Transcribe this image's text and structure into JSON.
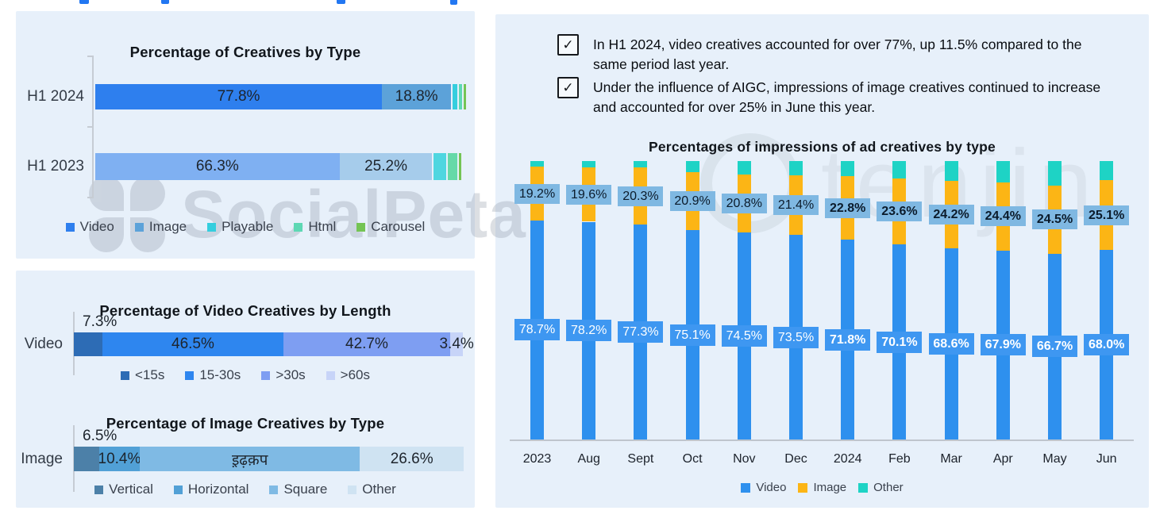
{
  "cropped_heading": {
    "color": "#2277f2"
  },
  "bullets": [
    {
      "icon": "checkbox-checked-icon",
      "check": "✓",
      "text": "In H1 2024, video creatives accounted for over 77%, up 11.5% compared to the same period last year."
    },
    {
      "icon": "checkbox-checked-icon",
      "check": "✓",
      "text": "Under the influence of AIGC, impressions of image creatives continued to increase and accounted for over 25% in June this year."
    }
  ],
  "watermarks": {
    "socialpeta": "SocialPeta",
    "tenjin": "tenjin"
  },
  "chart_data": [
    {
      "type": "bar",
      "subtype": "horizontal-stacked",
      "title": "Percentage of Creatives by Type",
      "xlim": [
        0,
        100
      ],
      "legend_position": "bottom",
      "legend": [
        {
          "label": "Video",
          "color": "#2e7fee"
        },
        {
          "label": "Image",
          "color": "#5ca2d9"
        },
        {
          "label": "Playable",
          "color": "#35cede"
        },
        {
          "label": "Html",
          "color": "#5ed8b4"
        },
        {
          "label": "Carousel",
          "color": "#74c454"
        }
      ],
      "rows": [
        {
          "label": "H1 2024",
          "segments": [
            {
              "name": "Video",
              "value": 77.8,
              "text": "77.8%",
              "color": "#2e7fee"
            },
            {
              "name": "Image",
              "value": 18.8,
              "text": "18.8%",
              "color": "#5ca2d9"
            },
            {
              "name": "Playable",
              "value": 1.2,
              "color": "#35cede",
              "gap": true
            },
            {
              "name": "Html",
              "value": 1.0,
              "color": "#5ed8b4",
              "gap": true
            },
            {
              "name": "Carousel",
              "value": 0.5,
              "color": "#74c454",
              "gap": true
            }
          ]
        },
        {
          "label": "H1 2023",
          "segments": [
            {
              "name": "Video",
              "value": 66.3,
              "text": "66.3%",
              "color": "#7fb0f2"
            },
            {
              "name": "Image",
              "value": 25.2,
              "text": "25.2%",
              "color": "#a6cceb"
            },
            {
              "name": "Playable",
              "value": 3.4,
              "color": "#4fd6e0",
              "gap": true
            },
            {
              "name": "Html",
              "value": 2.6,
              "color": "#66d9a8",
              "gap": true
            },
            {
              "name": "Carousel",
              "value": 0.5,
              "color": "#74c454",
              "gap": true
            }
          ]
        }
      ]
    },
    {
      "type": "bar",
      "subtype": "horizontal-stacked",
      "title": "Percentage of Video Creatives by Length",
      "xlim": [
        0,
        100
      ],
      "legend_position": "bottom",
      "legend": [
        {
          "label": "<15s",
          "color": "#2d6cb5"
        },
        {
          "label": "15-30s",
          "color": "#2e86ef"
        },
        {
          "label": ">30s",
          "color": "#7e9ef2"
        },
        {
          "label": ">60s",
          "color": "#c7d4f8"
        }
      ],
      "rows": [
        {
          "label": "Video",
          "outside_label": "7.3%",
          "segments": [
            {
              "name": "<15s",
              "value": 7.3,
              "color": "#2d6cb5"
            },
            {
              "name": "15-30s",
              "value": 46.5,
              "text": "46.5%",
              "color": "#2e86ef"
            },
            {
              "name": ">30s",
              "value": 42.7,
              "text": "42.7%",
              "color": "#7e9ef2"
            },
            {
              "name": ">60s",
              "value": 3.4,
              "text": "3.4%",
              "color": "#c7d4f8"
            }
          ]
        }
      ]
    },
    {
      "type": "bar",
      "subtype": "horizontal-stacked",
      "title": "Percentage of Image Creatives by Type",
      "xlim": [
        0,
        100
      ],
      "legend_position": "bottom",
      "legend": [
        {
          "label": "Vertical",
          "color": "#4c80a8"
        },
        {
          "label": "Horizontal",
          "color": "#51a0d6"
        },
        {
          "label": "Square",
          "color": "#7fbae4"
        },
        {
          "label": "Other",
          "color": "#cfe3f2"
        }
      ],
      "rows": [
        {
          "label": "Image",
          "outside_label": "6.5%",
          "segments": [
            {
              "name": "Vertical",
              "value": 6.5,
              "color": "#4c80a8"
            },
            {
              "name": "Horizontal",
              "value": 10.4,
              "text": "10.4%",
              "color": "#51a0d6"
            },
            {
              "name": "Square",
              "value": 56.5,
              "text": "इ़ढ़क़प",
              "color": "#7fbae4"
            },
            {
              "name": "Other",
              "value": 26.6,
              "text": "26.6%",
              "color": "#cfe3f2"
            }
          ]
        }
      ]
    },
    {
      "type": "bar",
      "subtype": "vertical-stacked",
      "title": "Percentages of impressions of ad creatives by type",
      "ylim": [
        0,
        100
      ],
      "legend_position": "bottom",
      "bold_from_index": 6,
      "categories": [
        "2023",
        "Aug",
        "Sept",
        "Oct",
        "Nov",
        "Dec",
        "2024",
        "Feb",
        "Mar",
        "Apr",
        "May",
        "Jun"
      ],
      "series": [
        {
          "name": "Video",
          "color": "#2e90ee",
          "labeled": true,
          "values": [
            78.7,
            78.2,
            77.3,
            75.1,
            74.5,
            73.5,
            71.8,
            70.1,
            68.6,
            67.9,
            66.7,
            68.0
          ],
          "labels": [
            "78.7%",
            "78.2%",
            "77.3%",
            "75.1%",
            "74.5%",
            "73.5%",
            "71.8%",
            "70.1%",
            "68.6%",
            "67.9%",
            "66.7%",
            "68.0%"
          ]
        },
        {
          "name": "Image",
          "color": "#fcb515",
          "labeled": true,
          "values": [
            19.2,
            19.6,
            20.3,
            20.9,
            20.8,
            21.4,
            22.8,
            23.6,
            24.2,
            24.4,
            24.5,
            25.1
          ],
          "labels": [
            "19.2%",
            "19.6%",
            "20.3%",
            "20.9%",
            "20.8%",
            "21.4%",
            "22.8%",
            "23.6%",
            "24.2%",
            "24.4%",
            "24.5%",
            "25.1%"
          ]
        },
        {
          "name": "Other",
          "color": "#1ed3c5",
          "labeled": false,
          "values": [
            2.1,
            2.2,
            2.4,
            4.0,
            4.7,
            5.1,
            5.4,
            6.3,
            7.2,
            7.7,
            8.8,
            6.9
          ]
        }
      ],
      "legend": [
        {
          "label": "Video",
          "color": "#2e90ee"
        },
        {
          "label": "Image",
          "color": "#fcb515"
        },
        {
          "label": "Other",
          "color": "#1ed3c5"
        }
      ]
    }
  ]
}
